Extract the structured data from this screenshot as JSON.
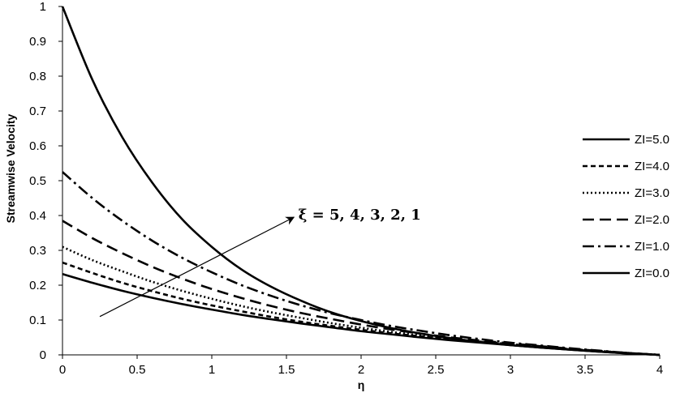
{
  "chart_data": {
    "type": "line",
    "title": "",
    "xlabel": "η",
    "ylabel": "Streamwise  Velocity",
    "xlim": [
      0,
      4
    ],
    "ylim": [
      0,
      1
    ],
    "x_ticks": [
      "0",
      "0.5",
      "1",
      "1.5",
      "2",
      "2.5",
      "3",
      "3.5",
      "4"
    ],
    "y_ticks": [
      "0",
      "0.1",
      "0.2",
      "0.3",
      "0.4",
      "0.5",
      "0.6",
      "0.7",
      "0.8",
      "0.9",
      "1"
    ],
    "grid": false,
    "legend_position": "right",
    "x": [
      0,
      0.2,
      0.4,
      0.6,
      0.8,
      1.0,
      1.2,
      1.4,
      1.6,
      1.8,
      2.0,
      2.2,
      2.4,
      2.6,
      2.8,
      3.0,
      3.2,
      3.4,
      3.6,
      3.8,
      4.0
    ],
    "series": [
      {
        "name": "ZI=5.0",
        "style": "solid-thick",
        "values": [
          1.0,
          0.79,
          0.625,
          0.495,
          0.39,
          0.31,
          0.245,
          0.195,
          0.155,
          0.122,
          0.097,
          0.077,
          0.061,
          0.048,
          0.037,
          0.028,
          0.021,
          0.015,
          0.009,
          0.004,
          0.0
        ]
      },
      {
        "name": "ZI=4.0",
        "style": "dashed-short",
        "values": [
          0.265,
          0.235,
          0.207,
          0.183,
          0.161,
          0.142,
          0.125,
          0.109,
          0.095,
          0.083,
          0.072,
          0.062,
          0.053,
          0.045,
          0.037,
          0.03,
          0.023,
          0.016,
          0.01,
          0.005,
          0.0
        ]
      },
      {
        "name": "ZI=3.0",
        "style": "dotted",
        "values": [
          0.31,
          0.272,
          0.24,
          0.21,
          0.184,
          0.161,
          0.14,
          0.122,
          0.106,
          0.091,
          0.078,
          0.066,
          0.056,
          0.047,
          0.038,
          0.031,
          0.024,
          0.017,
          0.011,
          0.005,
          0.0
        ]
      },
      {
        "name": "ZI=2.0",
        "style": "dashed-long",
        "values": [
          0.385,
          0.335,
          0.292,
          0.253,
          0.219,
          0.189,
          0.163,
          0.14,
          0.12,
          0.103,
          0.087,
          0.073,
          0.061,
          0.05,
          0.041,
          0.033,
          0.025,
          0.018,
          0.011,
          0.005,
          0.0
        ]
      },
      {
        "name": "ZI=1.0",
        "style": "dash-dot",
        "values": [
          0.525,
          0.45,
          0.385,
          0.328,
          0.279,
          0.237,
          0.2,
          0.169,
          0.142,
          0.119,
          0.1,
          0.083,
          0.069,
          0.056,
          0.045,
          0.035,
          0.027,
          0.019,
          0.012,
          0.005,
          0.0
        ]
      },
      {
        "name": "ZI=0.0",
        "style": "solid",
        "values": [
          0.232,
          0.207,
          0.184,
          0.164,
          0.146,
          0.13,
          0.115,
          0.102,
          0.09,
          0.079,
          0.068,
          0.059,
          0.05,
          0.042,
          0.035,
          0.028,
          0.021,
          0.015,
          0.009,
          0.004,
          0.0
        ]
      }
    ],
    "annotation": {
      "text": "ξ = 5, 4, 3, 2, 1",
      "arrow_from": [
        0.25,
        0.11
      ],
      "arrow_to": [
        1.55,
        0.395
      ],
      "text_at": [
        1.58,
        0.43
      ]
    }
  }
}
